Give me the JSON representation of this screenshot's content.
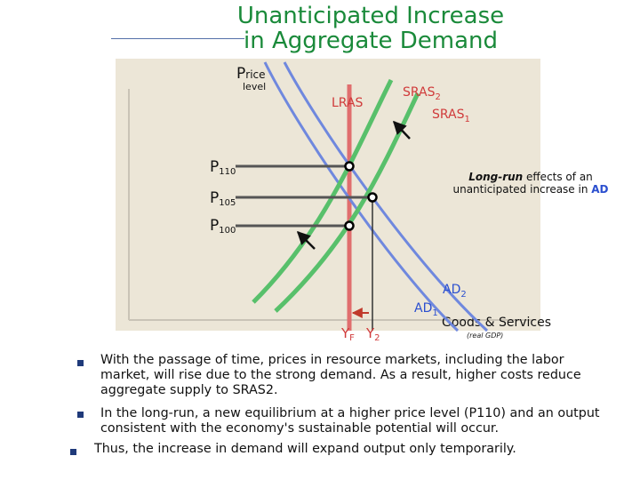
{
  "title": {
    "line1": "Unanticipated Increase",
    "line2": "in Aggregate Demand"
  },
  "axes": {
    "y_label_cap": "P",
    "y_label_rest": "rice",
    "y_label_sub": "level",
    "x_label": "Goods & Services",
    "x_label_sub": "(real GDP)"
  },
  "curves": {
    "lras": "LRAS",
    "sras2_base": "SRAS",
    "sras2_sub": "2",
    "sras1_base": "SRAS",
    "sras1_sub": "1",
    "ad2_base": "AD",
    "ad2_sub": "2",
    "ad1_base": "AD",
    "ad1_sub": "1"
  },
  "price_levels": [
    {
      "cap": "P",
      "sub": "110"
    },
    {
      "cap": "P",
      "sub": "105"
    },
    {
      "cap": "P",
      "sub": "100"
    }
  ],
  "outputs": [
    {
      "cap": "Y",
      "sub": "F"
    },
    {
      "cap": "Y",
      "sub": "2"
    }
  ],
  "annotation": {
    "line1_bold": "Long-run",
    "line1_rest": " effects of an",
    "line2_rest": "unanticipated increase in ",
    "line2_ad": "AD"
  },
  "bullets": [
    {
      "lines": [
        "With the passage of time, prices in resource markets, including the labor",
        "market, will rise due to the strong demand. As a result, higher costs reduce",
        "aggregate supply to SRAS2."
      ]
    },
    {
      "lines": [
        "In the long-run, a new equilibrium at a higher price level (P110) and an output",
        "consistent with the economy's sustainable potential will occur."
      ]
    },
    {
      "lines": [
        "Thus, the increase in demand will expand output only temporarily."
      ]
    }
  ],
  "colors": {
    "title": "#1a8a3a",
    "green_curve": "#58c06b",
    "blue_curve": "#6f88de",
    "lras": "#e06e6e",
    "label_red": "#d03a3a",
    "label_blue": "#2b4fcf",
    "panel": "#ece6d7"
  }
}
